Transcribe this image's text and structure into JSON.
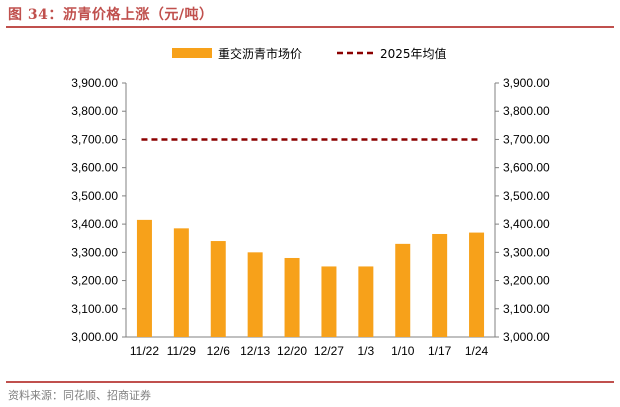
{
  "figure": {
    "title": "图 34：沥青价格上涨（元/吨）",
    "source": "资料来源：同花顺、招商证券"
  },
  "chart_data": {
    "type": "bar",
    "categories": [
      "11/22",
      "11/29",
      "12/6",
      "12/13",
      "12/20",
      "12/27",
      "1/3",
      "1/10",
      "1/17",
      "1/24"
    ],
    "series": [
      {
        "name": "重交沥青市场价",
        "type": "bar",
        "color": "#f7a11a",
        "values": [
          3415,
          3385,
          3340,
          3300,
          3280,
          3250,
          3250,
          3330,
          3365,
          3370
        ]
      },
      {
        "name": "2025年均值",
        "type": "line",
        "style": "dashed",
        "color": "#8b0000",
        "values": [
          3700,
          3700,
          3700,
          3700,
          3700,
          3700,
          3700,
          3700,
          3700,
          3700
        ]
      }
    ],
    "ylim": [
      3000,
      3900
    ],
    "yticks": [
      "3,000.00",
      "3,100.00",
      "3,200.00",
      "3,300.00",
      "3,400.00",
      "3,500.00",
      "3,600.00",
      "3,700.00",
      "3,800.00",
      "3,900.00"
    ],
    "ytick_values": [
      3000,
      3100,
      3200,
      3300,
      3400,
      3500,
      3600,
      3700,
      3800,
      3900
    ],
    "secondary_axis": true,
    "grid": false,
    "legend_position": "top"
  }
}
